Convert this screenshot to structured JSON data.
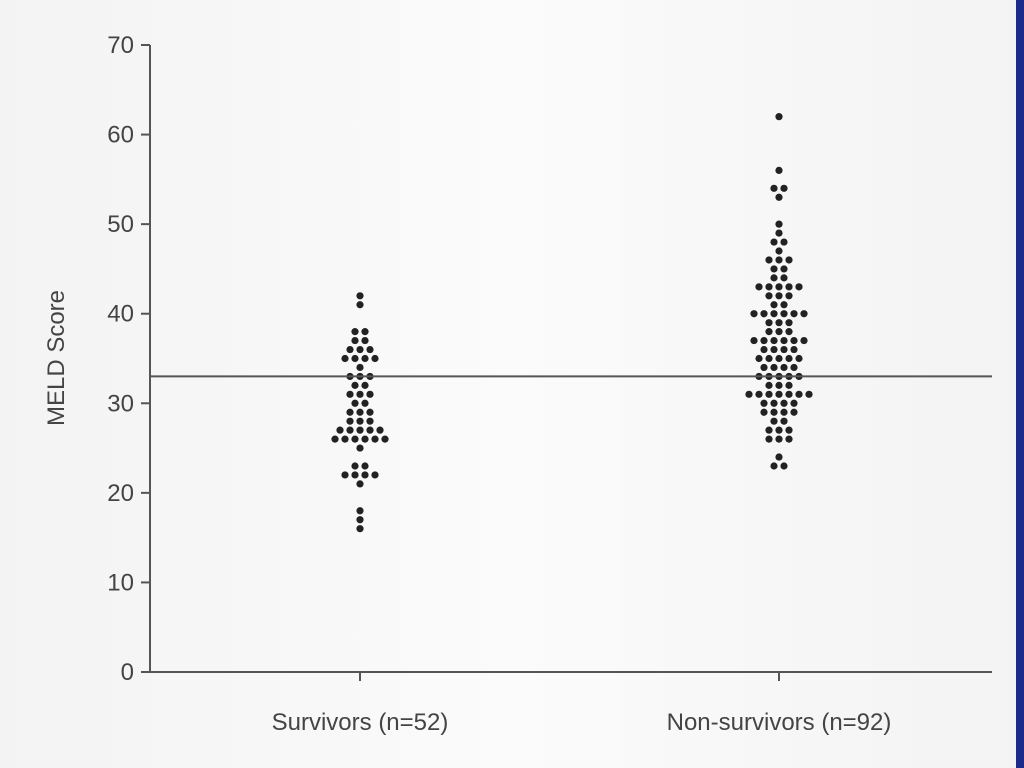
{
  "chart_data": {
    "type": "scatter",
    "subtype": "dot-plot",
    "title": "",
    "ylabel": "MELD Score",
    "xlabel": "",
    "ylim": [
      0,
      70
    ],
    "yticks": [
      "0",
      "10",
      "20",
      "30",
      "40",
      "50",
      "60",
      "70"
    ],
    "categories": [
      "Survivors (n=52)",
      "Non-survivors (n=92)"
    ],
    "reference_line": {
      "y": 33
    },
    "grid": false,
    "dot_color": "#222222",
    "axis_color": "#555555",
    "series": [
      {
        "category_index": 0,
        "values": [
          16,
          17,
          18,
          21,
          22,
          22,
          22,
          22,
          23,
          23,
          25,
          26,
          26,
          26,
          26,
          26,
          26,
          27,
          27,
          27,
          27,
          27,
          28,
          28,
          28,
          29,
          29,
          29,
          30,
          30,
          31,
          31,
          31,
          32,
          32,
          33,
          33,
          33,
          34,
          35,
          35,
          35,
          35,
          36,
          36,
          36,
          37,
          37,
          38,
          38,
          41,
          42
        ]
      },
      {
        "category_index": 1,
        "values": [
          23,
          23,
          24,
          26,
          26,
          26,
          27,
          27,
          27,
          28,
          28,
          29,
          29,
          29,
          29,
          30,
          30,
          30,
          30,
          31,
          31,
          31,
          31,
          31,
          31,
          31,
          32,
          32,
          32,
          33,
          33,
          33,
          33,
          33,
          34,
          34,
          34,
          34,
          35,
          35,
          35,
          35,
          35,
          36,
          36,
          36,
          36,
          37,
          37,
          37,
          37,
          37,
          37,
          38,
          38,
          38,
          39,
          39,
          39,
          40,
          40,
          40,
          40,
          40,
          40,
          41,
          41,
          42,
          42,
          42,
          43,
          43,
          43,
          43,
          43,
          44,
          44,
          45,
          45,
          46,
          46,
          46,
          47,
          48,
          48,
          49,
          50,
          53,
          54,
          54,
          56,
          62
        ]
      }
    ]
  },
  "frame": {
    "border_color": "#1c2a8c"
  }
}
